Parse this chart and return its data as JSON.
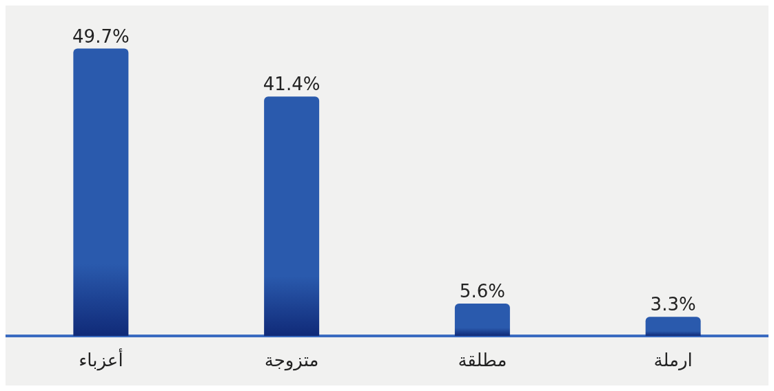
{
  "chart_data": {
    "type": "bar",
    "categories": [
      "أعزباء",
      "متزوجة",
      "مطلقة",
      "ارملة"
    ],
    "values": [
      49.7,
      41.4,
      5.6,
      3.3
    ],
    "color": "#2a5aad",
    "value_labels": [
      "49.7%",
      "41.4%",
      "5.6%",
      "3.3%"
    ],
    "tick_labels": "x",
    "grid": false
  }
}
